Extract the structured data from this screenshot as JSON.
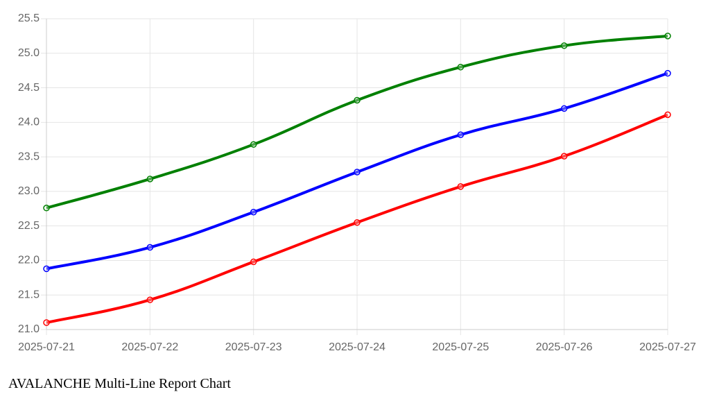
{
  "chart_data": {
    "type": "line",
    "title": "AVALANCHE Multi-Line Report Chart",
    "categories": [
      "2025-07-21",
      "2025-07-22",
      "2025-07-23",
      "2025-07-24",
      "2025-07-25",
      "2025-07-26",
      "2025-07-27"
    ],
    "series": [
      {
        "color": "#008000",
        "values": [
          22.76,
          23.18,
          23.68,
          24.32,
          24.8,
          25.11,
          25.25
        ]
      },
      {
        "color": "#0000ff",
        "values": [
          21.88,
          22.19,
          22.7,
          23.28,
          23.82,
          24.2,
          24.71
        ]
      },
      {
        "color": "#ff0000",
        "values": [
          21.1,
          21.43,
          21.98,
          22.55,
          23.07,
          23.51,
          24.11
        ]
      }
    ],
    "ylim": [
      21,
      25.5
    ],
    "yticks": [
      {
        "value": 21,
        "label": "21.0"
      },
      21.5,
      {
        "value": 22,
        "label": "22.0"
      },
      22.5,
      {
        "value": 23,
        "label": "23.0"
      },
      23.5,
      {
        "value": 24,
        "label": "24.0"
      },
      24.5,
      {
        "value": 25,
        "label": "25.0"
      },
      25.5
    ],
    "grid": true
  }
}
